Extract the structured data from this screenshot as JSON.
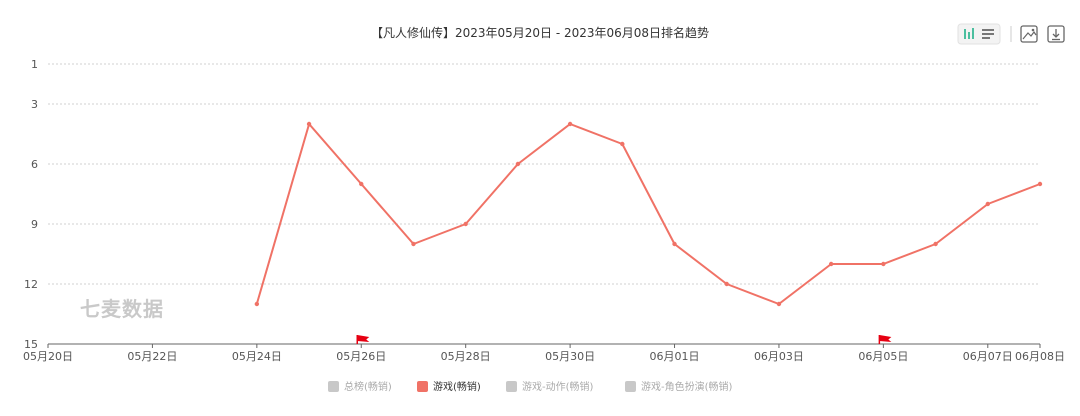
{
  "chart_data": {
    "type": "line",
    "title": "【凡人修仙传】2023年05月20日 - 2023年06月08日排名趋势",
    "y_inverted": true,
    "ylim": [
      1,
      15
    ],
    "yticks": [
      "1",
      "3",
      "6",
      "9",
      "12",
      "15"
    ],
    "xlim": [
      "05月20日",
      "06月08日"
    ],
    "x_tick_labels": [
      "05月20日",
      "05月22日",
      "05月24日",
      "05月26日",
      "05月28日",
      "05月30日",
      "06月01日",
      "06月03日",
      "06月05日",
      "06月07日",
      "06月08日"
    ],
    "grid": true,
    "legend_position": "bottom-center",
    "series": [
      {
        "name": "游戏(畅销)",
        "color": "#f07266",
        "x": [
          "05月24日",
          "05月25日",
          "05月26日",
          "05月27日",
          "05月28日",
          "05月29日",
          "05月30日",
          "05月31日",
          "06月01日",
          "06月02日",
          "06月03日",
          "06月04日",
          "06月05日",
          "06月06日",
          "06月07日",
          "06月08日"
        ],
        "values": [
          13,
          4,
          7,
          10,
          9,
          6,
          4,
          5,
          10,
          12,
          13,
          11,
          11,
          10,
          8,
          7
        ]
      }
    ],
    "markers": [
      {
        "x": "05月26日",
        "icon": "red-flag-icon",
        "color": "#e60012"
      },
      {
        "x": "06月05日",
        "icon": "red-flag-icon",
        "color": "#e60012"
      }
    ],
    "legend": [
      {
        "label": "总榜(畅销)",
        "color": "#c8c8c8",
        "active": false
      },
      {
        "label": "游戏(畅销)",
        "color": "#f07266",
        "active": true
      },
      {
        "label": "游戏-动作(畅销)",
        "color": "#c8c8c8",
        "active": false
      },
      {
        "label": "游戏-角色扮演(畅销)",
        "color": "#c8c8c8",
        "active": false
      }
    ]
  },
  "watermark": "七麦数据",
  "toolbar": {
    "icons": [
      "bar-chart-icon",
      "list-icon",
      "image-icon",
      "download-icon"
    ],
    "accent_color": "#4bbf9f"
  }
}
